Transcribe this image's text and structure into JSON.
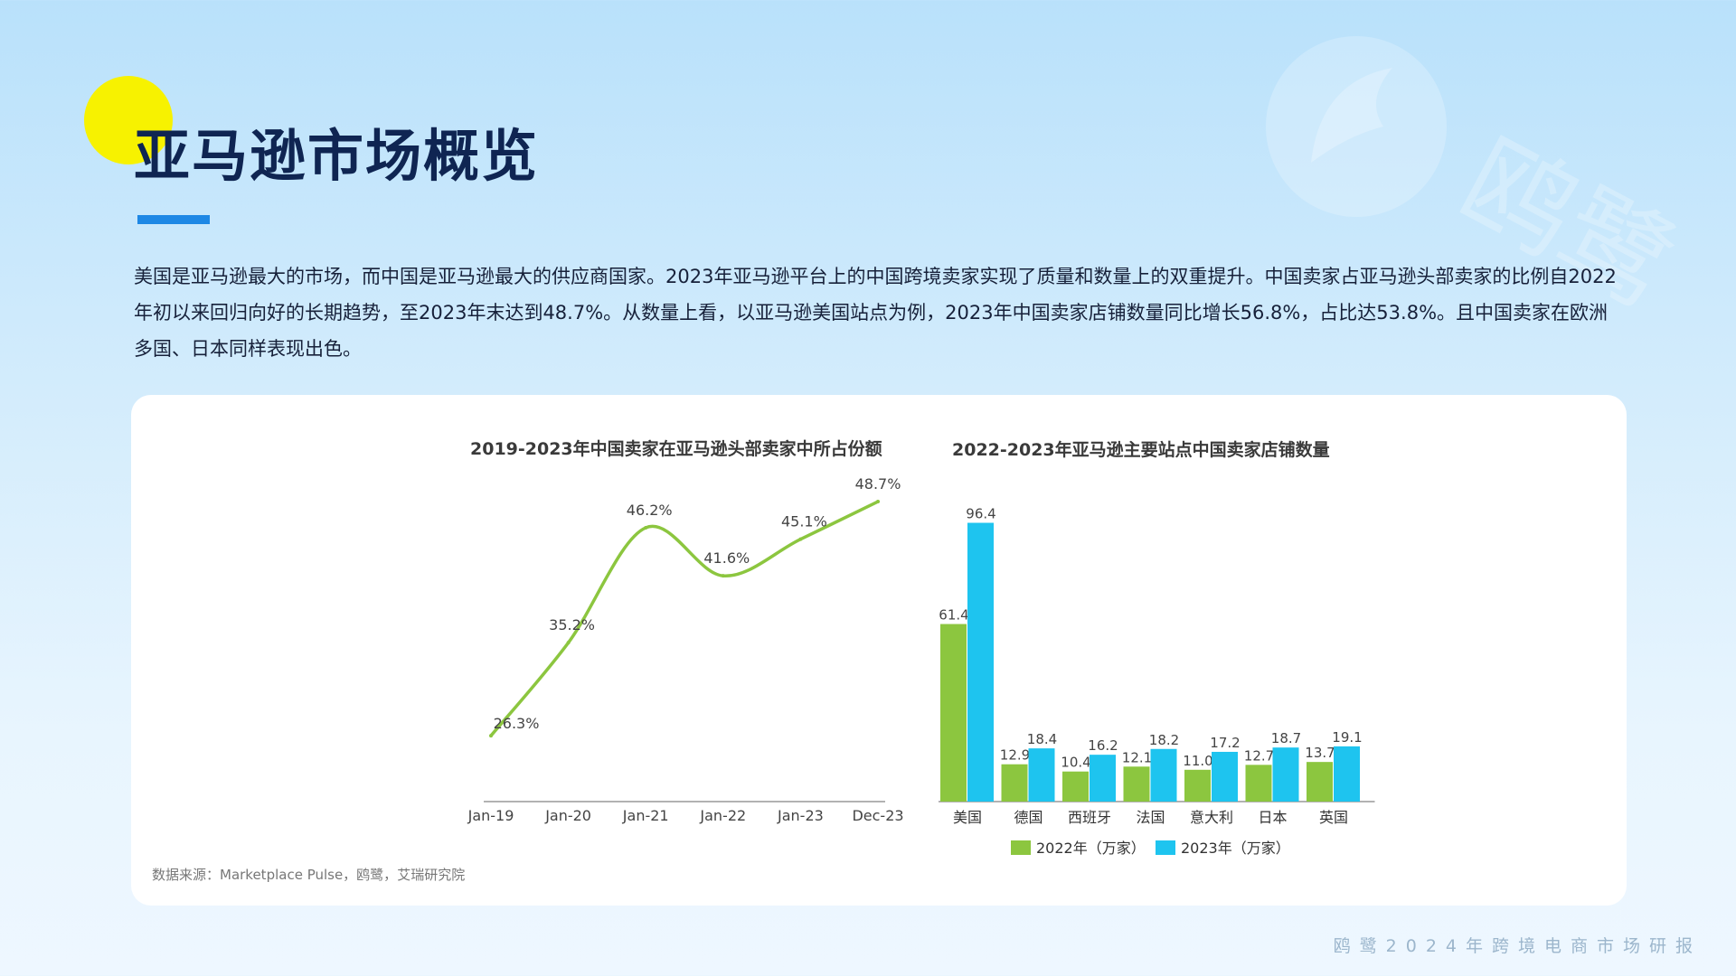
{
  "page": {
    "title": "亚马逊市场概览",
    "intro": "美国是亚马逊最大的市场，而中国是亚马逊最大的供应商国家。2023年亚马逊平台上的中国跨境卖家实现了质量和数量上的双重提升。中国卖家占亚马逊头部卖家的比例自2022年初以来回归向好的长期趋势，至2023年末达到48.7%。从数量上看，以亚马逊美国站点为例，2023年中国卖家店铺数量同比增长56.8%，占比达53.8%。且中国卖家在欧洲多国、日本同样表现出色。",
    "source": "数据来源：Marketplace Pulse，鸥鹭，艾瑞研究院",
    "footer": "鸥鹭2024年跨境电商市场研报",
    "watermark_text": "鸥鹭"
  },
  "colors": {
    "line": "#8cc63f",
    "bar_2022": "#8cc63f",
    "bar_2023": "#1ec4ef",
    "accent": "#1e88e5",
    "yellow": "#f7f200"
  },
  "chart_data": [
    {
      "type": "line",
      "title": "2019-2023年中国卖家在亚马逊头部卖家中所占份额",
      "xlabel": "",
      "ylabel": "",
      "x_ticks": [
        "Jan-19",
        "Jan-20",
        "Jan-21",
        "Jan-22",
        "Jan-23",
        "Dec-23"
      ],
      "points": [
        {
          "x": "Jan-19",
          "value": 26.3,
          "label": "26.3%"
        },
        {
          "x": "Jan-20",
          "value": 35.2,
          "label": "35.2%"
        },
        {
          "x": "Jan-21",
          "value": 46.2,
          "label": "46.2%"
        },
        {
          "x": "Jan-22",
          "value": 41.6,
          "label": "41.6%"
        },
        {
          "x": "Jan-23",
          "value": 45.1,
          "label": "45.1%"
        },
        {
          "x": "Dec-23",
          "value": 48.7,
          "label": "48.7%"
        }
      ],
      "grid": false
    },
    {
      "type": "bar",
      "title": "2022-2023年亚马逊主要站点中国卖家店铺数量",
      "categories": [
        "美国",
        "德国",
        "西班牙",
        "法国",
        "意大利",
        "日本",
        "英国"
      ],
      "series": [
        {
          "name": "2022年（万家）",
          "values": [
            61.4,
            12.9,
            10.4,
            12.1,
            11.0,
            12.7,
            13.7
          ]
        },
        {
          "name": "2023年（万家）",
          "values": [
            96.4,
            18.4,
            16.2,
            18.2,
            17.2,
            18.7,
            19.1
          ]
        }
      ],
      "legend_position": "bottom",
      "grid": false
    }
  ]
}
